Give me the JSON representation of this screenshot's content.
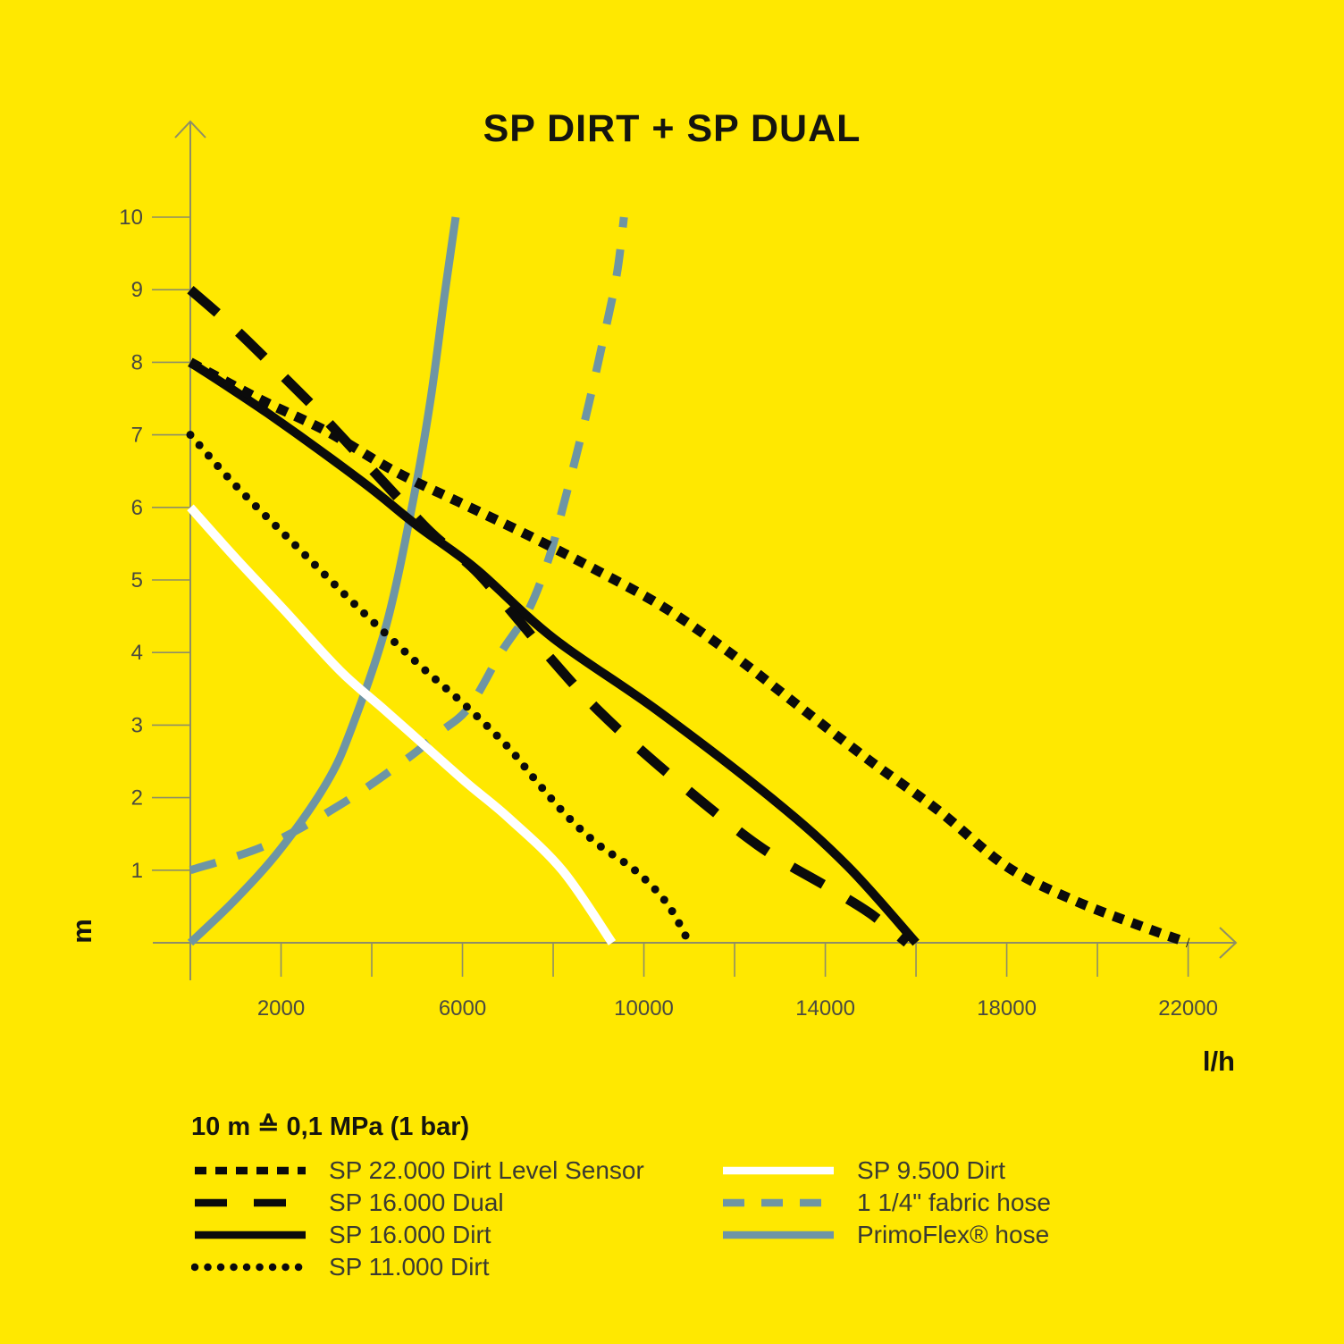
{
  "title": "SP DIRT + SP DUAL",
  "note": "10 m ≙ 0,1 MPa (1 bar)",
  "colors": {
    "background": "#FFE800",
    "curve_black": "#0b0b0b",
    "curve_white": "#ffffff",
    "curve_blue_gray": "#6E95A4",
    "axis_line": "#8e8e66",
    "tick_text": "#4a4a40",
    "legend_text": "#3b3b31",
    "title_text": "#15150f"
  },
  "chart_data": {
    "type": "line",
    "title": "SP DIRT + SP DUAL",
    "xlabel": "l/h",
    "ylabel": "m",
    "xlim": [
      0,
      23000
    ],
    "ylim": [
      0,
      10.8
    ],
    "grid": false,
    "legend_position": "below",
    "x_ticks": [
      0,
      2000,
      4000,
      6000,
      8000,
      10000,
      12000,
      14000,
      16000,
      18000,
      20000,
      22000
    ],
    "x_labeled_ticks": [
      2000,
      6000,
      10000,
      14000,
      18000,
      22000
    ],
    "y_ticks": [
      1,
      2,
      3,
      4,
      5,
      6,
      7,
      8,
      9,
      10
    ],
    "series": [
      {
        "name": "SP 22.000 Dirt Level Sensor",
        "color": "#0b0b0b",
        "style": "square-dotted",
        "dash": [
          12,
          10
        ],
        "legend_dash": [
          13,
          10
        ],
        "width": 11,
        "linecap": "butt",
        "z": 7,
        "legend_column": "left",
        "points": [
          [
            0,
            8.0
          ],
          [
            1500,
            7.5
          ],
          [
            3000,
            7.05
          ],
          [
            4500,
            6.5
          ],
          [
            6000,
            6.05
          ],
          [
            7500,
            5.6
          ],
          [
            9000,
            5.12
          ],
          [
            10500,
            4.6
          ],
          [
            12000,
            3.95
          ],
          [
            13500,
            3.22
          ],
          [
            15000,
            2.5
          ],
          [
            16500,
            1.82
          ],
          [
            18000,
            1.05
          ],
          [
            19500,
            0.58
          ],
          [
            21000,
            0.22
          ],
          [
            22000,
            0
          ]
        ]
      },
      {
        "name": "SP 16.000 Dual",
        "color": "#0b0b0b",
        "style": "long-dashed",
        "dash": [
          40,
          32
        ],
        "legend_dash": [
          36,
          30
        ],
        "width": 11,
        "linecap": "butt",
        "z": 5,
        "legend_column": "left",
        "points": [
          [
            0,
            9.0
          ],
          [
            1000,
            8.45
          ],
          [
            2300,
            7.65
          ],
          [
            3000,
            7.2
          ],
          [
            4850,
            5.95
          ],
          [
            5400,
            5.6
          ],
          [
            6300,
            5.12
          ],
          [
            7300,
            4.4
          ],
          [
            7900,
            3.95
          ],
          [
            9000,
            3.2
          ],
          [
            10500,
            2.35
          ],
          [
            12500,
            1.35
          ],
          [
            14100,
            0.75
          ],
          [
            15000,
            0.4
          ],
          [
            15800,
            0
          ]
        ]
      },
      {
        "name": "SP 16.000 Dirt",
        "color": "#0b0b0b",
        "style": "solid",
        "dash": null,
        "legend_dash": null,
        "width": 10,
        "linecap": "butt",
        "z": 4,
        "legend_column": "left",
        "points": [
          [
            0,
            8.0
          ],
          [
            1700,
            7.3
          ],
          [
            3800,
            6.35
          ],
          [
            5000,
            5.75
          ],
          [
            6300,
            5.15
          ],
          [
            8000,
            4.2
          ],
          [
            10300,
            3.2
          ],
          [
            12900,
            1.95
          ],
          [
            14500,
            1.05
          ],
          [
            16000,
            0
          ]
        ]
      },
      {
        "name": "SP 11.000 Dirt",
        "color": "#0b0b0b",
        "style": "round-dotted",
        "dash": [
          0.01,
          15.5
        ],
        "legend_dash": [
          0.01,
          14.5
        ],
        "width": 9,
        "linecap": "round",
        "z": 6,
        "legend_column": "left",
        "points": [
          [
            0,
            7.0
          ],
          [
            1000,
            6.3
          ],
          [
            2200,
            5.55
          ],
          [
            3000,
            5.05
          ],
          [
            3900,
            4.5
          ],
          [
            5100,
            3.8
          ],
          [
            6100,
            3.25
          ],
          [
            7000,
            2.7
          ],
          [
            7600,
            2.25
          ],
          [
            8300,
            1.75
          ],
          [
            9000,
            1.35
          ],
          [
            9800,
            1.0
          ],
          [
            10500,
            0.55
          ],
          [
            11000,
            0
          ]
        ]
      },
      {
        "name": "SP 9.500 Dirt",
        "color": "#ffffff",
        "style": "solid",
        "dash": null,
        "legend_dash": null,
        "width": 10,
        "linecap": "butt",
        "z": 3,
        "legend_column": "right",
        "points": [
          [
            0,
            6.0
          ],
          [
            1000,
            5.3
          ],
          [
            2050,
            4.6
          ],
          [
            3300,
            3.75
          ],
          [
            4300,
            3.2
          ],
          [
            5200,
            2.7
          ],
          [
            6100,
            2.2
          ],
          [
            7000,
            1.73
          ],
          [
            8200,
            1.0
          ],
          [
            9300,
            0
          ]
        ]
      },
      {
        "name": "1 1/4\" fabric hose",
        "color": "#6E95A4",
        "style": "dashed",
        "dash": [
          30,
          25
        ],
        "legend_dash": [
          24,
          19
        ],
        "width": 9,
        "linecap": "butt",
        "z": 1,
        "legend_column": "right",
        "points": [
          [
            0,
            1.0
          ],
          [
            1700,
            1.35
          ],
          [
            3300,
            1.9
          ],
          [
            4700,
            2.5
          ],
          [
            5500,
            2.9
          ],
          [
            6150,
            3.25
          ],
          [
            6850,
            4.0
          ],
          [
            7430,
            4.55
          ],
          [
            7880,
            5.25
          ],
          [
            8215,
            6.0
          ],
          [
            8700,
            7.2
          ],
          [
            9100,
            8.3
          ],
          [
            9400,
            9.2
          ],
          [
            9560,
            10
          ]
        ]
      },
      {
        "name": "PrimoFlex® hose",
        "color": "#6E95A4",
        "style": "solid",
        "dash": null,
        "legend_dash": null,
        "width": 9,
        "linecap": "butt",
        "z": 2,
        "legend_column": "right",
        "points": [
          [
            0,
            0
          ],
          [
            1000,
            0.6
          ],
          [
            2000,
            1.3
          ],
          [
            3000,
            2.2
          ],
          [
            3550,
            2.95
          ],
          [
            4330,
            4.4
          ],
          [
            4930,
            6.15
          ],
          [
            5300,
            7.5
          ],
          [
            5600,
            8.9
          ],
          [
            5850,
            10
          ]
        ]
      }
    ]
  }
}
